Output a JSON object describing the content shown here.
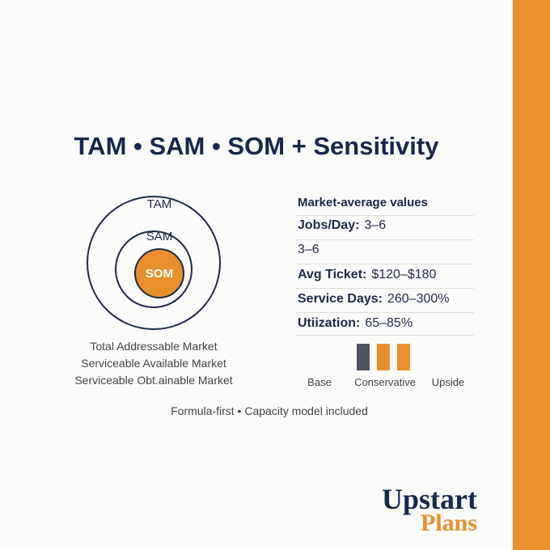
{
  "title": "TAM • SAM • SOM + Sensitivity",
  "circles": {
    "outer": "TAM",
    "middle": "SAM",
    "inner": "SOM"
  },
  "definitions": [
    "Total Addressable Market",
    "Serviceable Available Market",
    "Serviceable Obt.ainable Market"
  ],
  "panel": {
    "heading": "Market-average values",
    "rows": [
      {
        "label": "Jobs/Day:",
        "value": "3–6"
      },
      {
        "label": "",
        "value": "3–6"
      },
      {
        "label": "Avg Ticket:",
        "value": "$120–$180"
      },
      {
        "label": "Service Days:",
        "value": "260–300%"
      },
      {
        "label": "Utiization:",
        "value": "65–85%"
      }
    ]
  },
  "scenarios": [
    "Base",
    "Conservative",
    "Upside"
  ],
  "footer": "Formula-first • Capacity model included",
  "logo": {
    "line1": "Upstart",
    "line2": "Plans"
  }
}
